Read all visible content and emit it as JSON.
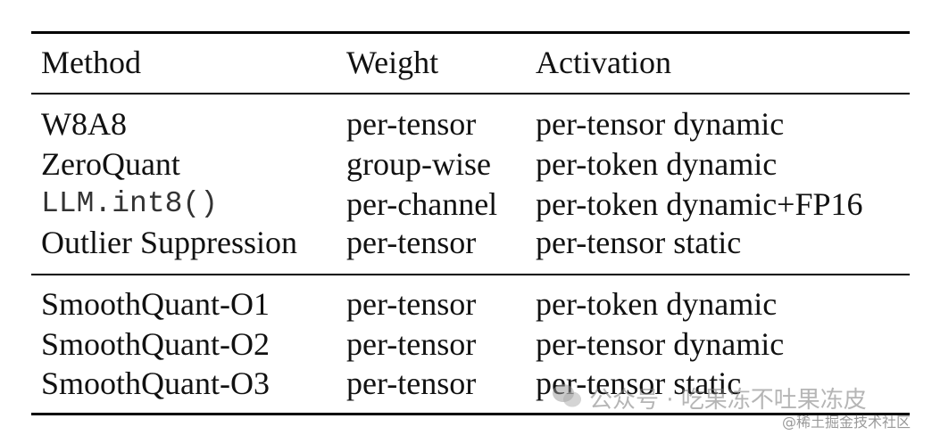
{
  "table": {
    "header": [
      "Method",
      "Weight",
      "Activation"
    ],
    "groups": [
      {
        "rows": [
          [
            "W8A8",
            "per-tensor",
            "per-tensor dynamic"
          ],
          [
            "ZeroQuant",
            "group-wise",
            "per-token dynamic"
          ],
          [
            "LLM.int8()",
            "per-channel",
            "per-token dynamic+FP16"
          ],
          [
            "Outlier Suppression",
            "per-tensor",
            "per-tensor static"
          ]
        ]
      },
      {
        "rows": [
          [
            "SmoothQuant-O1",
            "per-tensor",
            "per-token dynamic"
          ],
          [
            "SmoothQuant-O2",
            "per-tensor",
            "per-tensor dynamic"
          ],
          [
            "SmoothQuant-O3",
            "per-tensor",
            "per-tensor static"
          ]
        ]
      }
    ]
  },
  "watermarks": [
    "公众号 · 吃果冻不吐果冻皮",
    "@稀土掘金技术社区"
  ]
}
